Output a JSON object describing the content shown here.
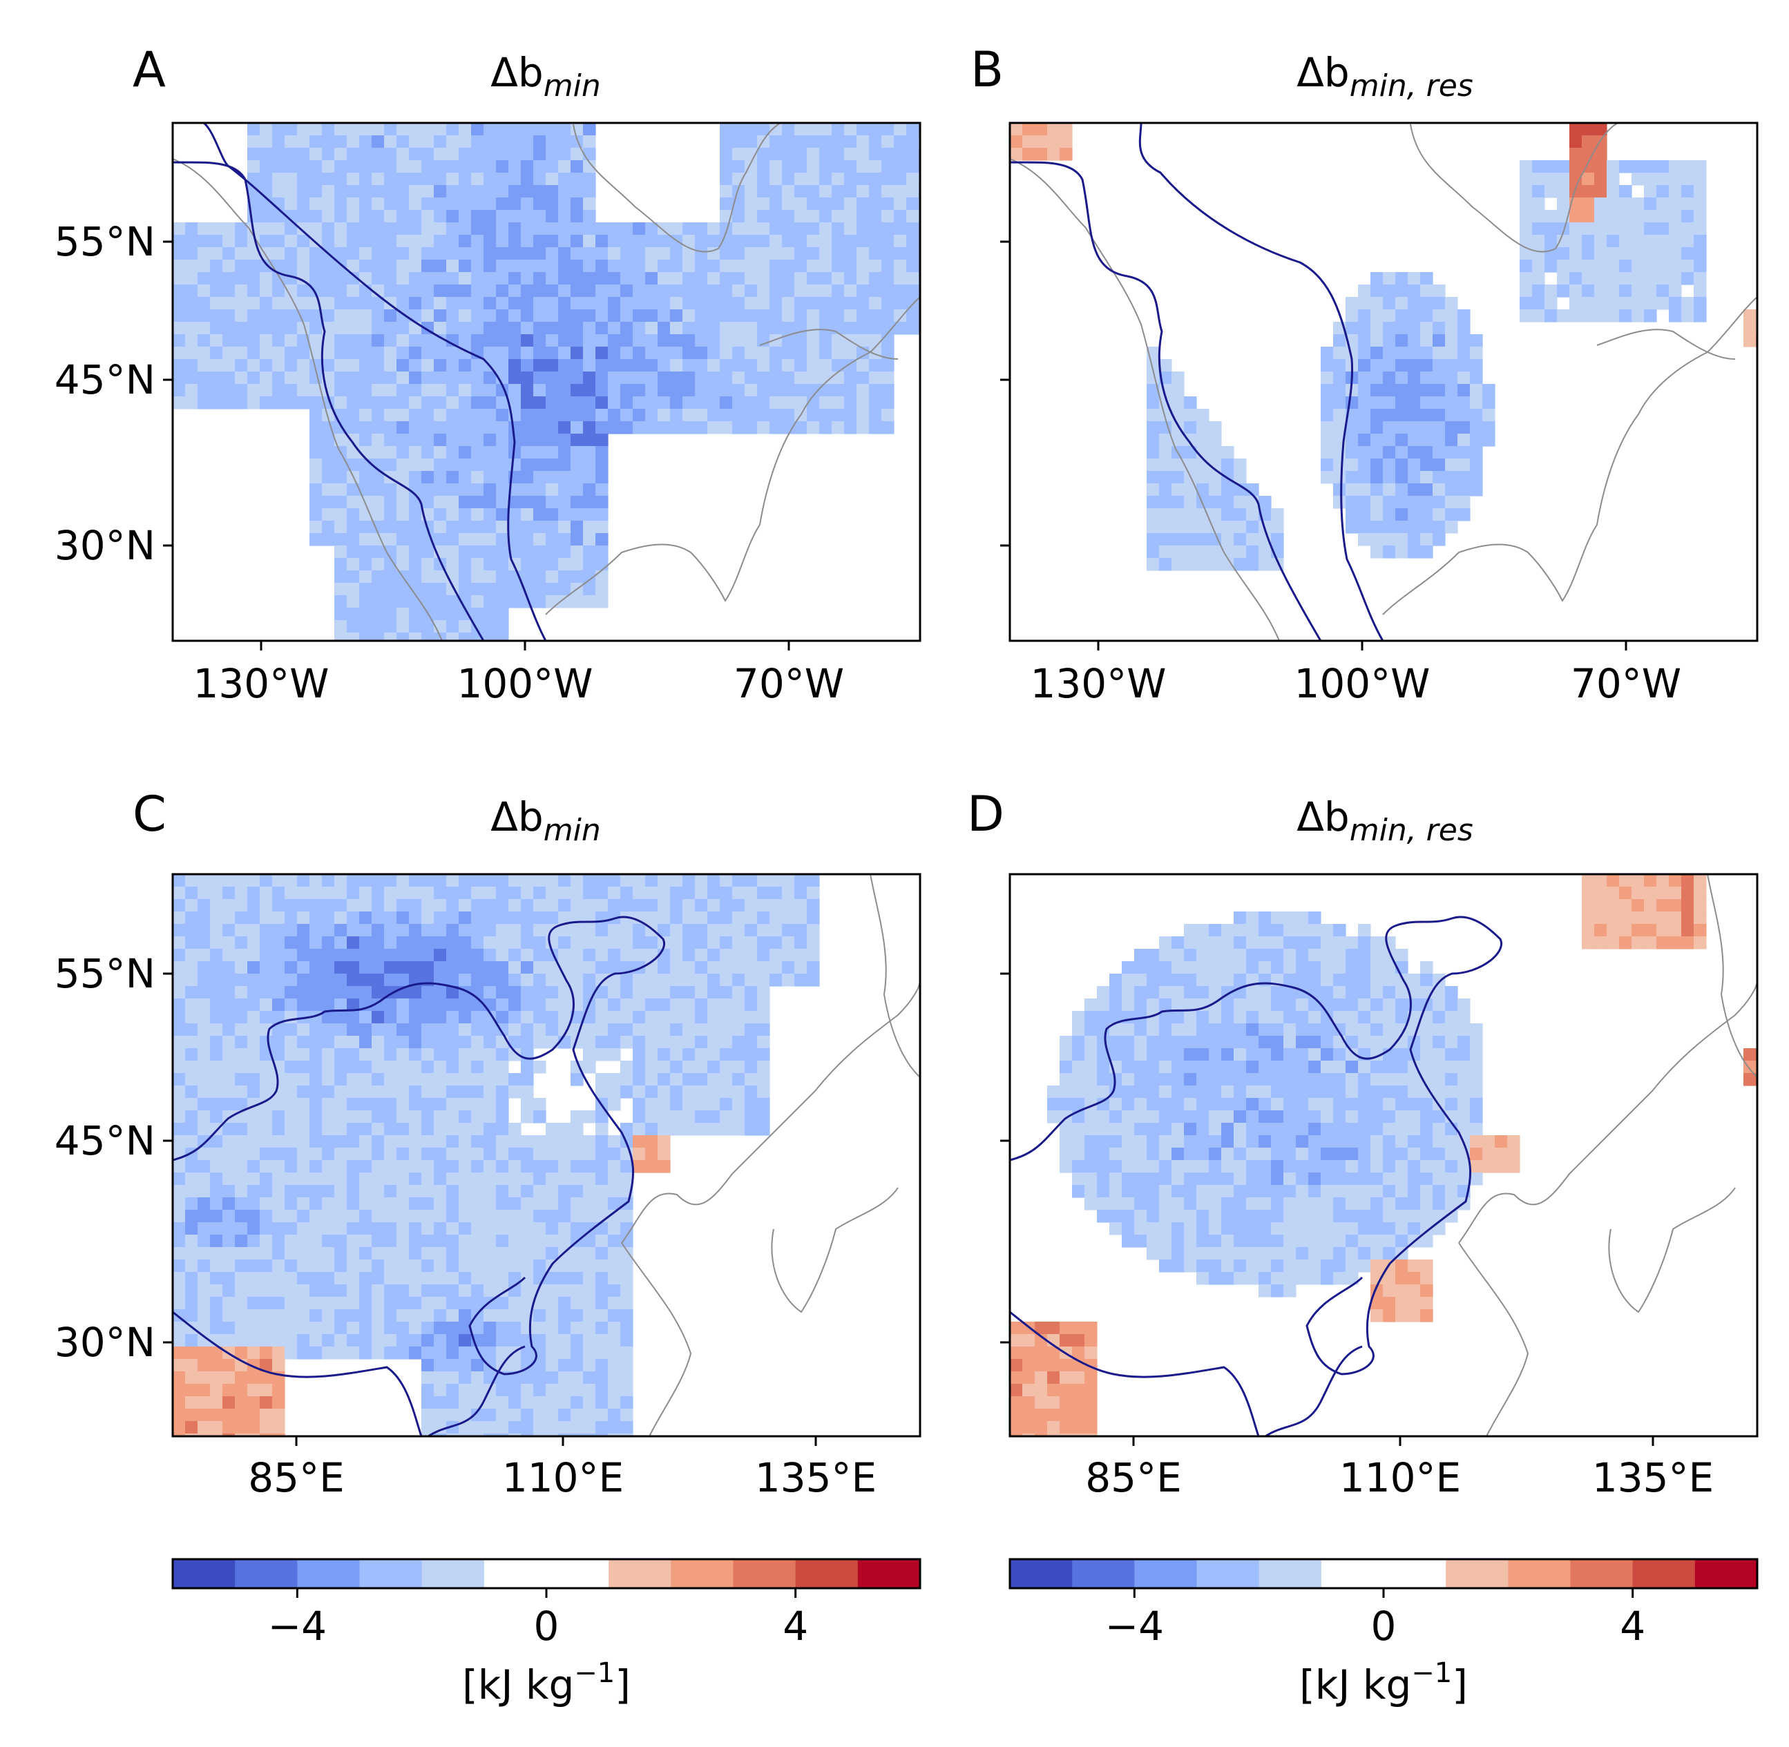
{
  "panels": [
    {
      "id": "A",
      "letter": "A",
      "title_main": "Δb",
      "title_sub": "min",
      "x_ticks": [
        "130°W",
        "100°W",
        "70°W"
      ],
      "y_ticks": [
        "55°N",
        "45°N",
        "30°N"
      ],
      "region": "north_america",
      "variant": "full"
    },
    {
      "id": "B",
      "letter": "B",
      "title_main": "Δb",
      "title_sub": "min, res",
      "x_ticks": [
        "130°W",
        "100°W",
        "70°W"
      ],
      "y_ticks": [],
      "region": "north_america",
      "variant": "residual"
    },
    {
      "id": "C",
      "letter": "C",
      "title_main": "Δb",
      "title_sub": "min",
      "x_ticks": [
        "85°E",
        "110°E",
        "135°E"
      ],
      "y_ticks": [
        "55°N",
        "45°N",
        "30°N"
      ],
      "region": "east_asia",
      "variant": "full"
    },
    {
      "id": "D",
      "letter": "D",
      "title_main": "Δb",
      "title_sub": "min, res",
      "x_ticks": [
        "85°E",
        "110°E",
        "135°E"
      ],
      "y_ticks": [],
      "region": "east_asia",
      "variant": "residual"
    }
  ],
  "colorbar": {
    "tick_labels": [
      "−4",
      "0",
      "4"
    ],
    "tick_values": [
      -4,
      0,
      4
    ],
    "vmin": -6,
    "vmax": 6,
    "unit_main": "[kJ kg",
    "unit_sup": "−1",
    "unit_end": "]",
    "colors": [
      "#3b4cc0",
      "#5673e0",
      "#7a9df8",
      "#9ebeff",
      "#c0d4f5",
      "#ffffff",
      "#ffffff",
      "#f2c0a8",
      "#f19f80",
      "#e27760",
      "#cc4a40",
      "#b40426"
    ]
  },
  "colors": {
    "boundary_line": "#1a1a8c",
    "coastline": "#8c8c8c",
    "frame": "#000000"
  }
}
